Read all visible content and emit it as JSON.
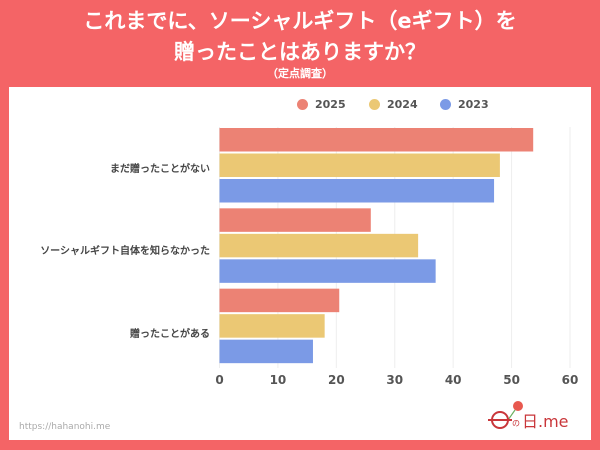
{
  "header": {
    "title_line1": "これまでに、ソーシャルギフト（eギフト）を",
    "title_line2": "贈ったことはありますか？",
    "subtitle": "（定点調査）"
  },
  "footer": {
    "url": "https://hahanohi.me",
    "logo_text": "母の日.me"
  },
  "chart_data": {
    "type": "bar",
    "orientation": "horizontal",
    "categories": [
      "まだ贈ったことがない",
      "ソーシャルギフト自体を知らなかった",
      "贈ったことがある"
    ],
    "series": [
      {
        "name": "2025",
        "color": "#ec8274",
        "values": [
          53.7,
          25.9,
          20.5
        ]
      },
      {
        "name": "2024",
        "color": "#ebc874",
        "values": [
          48.0,
          34.0,
          18.0
        ]
      },
      {
        "name": "2023",
        "color": "#7b9ae6",
        "values": [
          47.0,
          37.0,
          16.0
        ]
      }
    ],
    "xlim": [
      0,
      60
    ],
    "xticks": [
      "0",
      "10",
      "20",
      "30",
      "40",
      "50",
      "60"
    ],
    "grid": true,
    "legend": "top"
  }
}
